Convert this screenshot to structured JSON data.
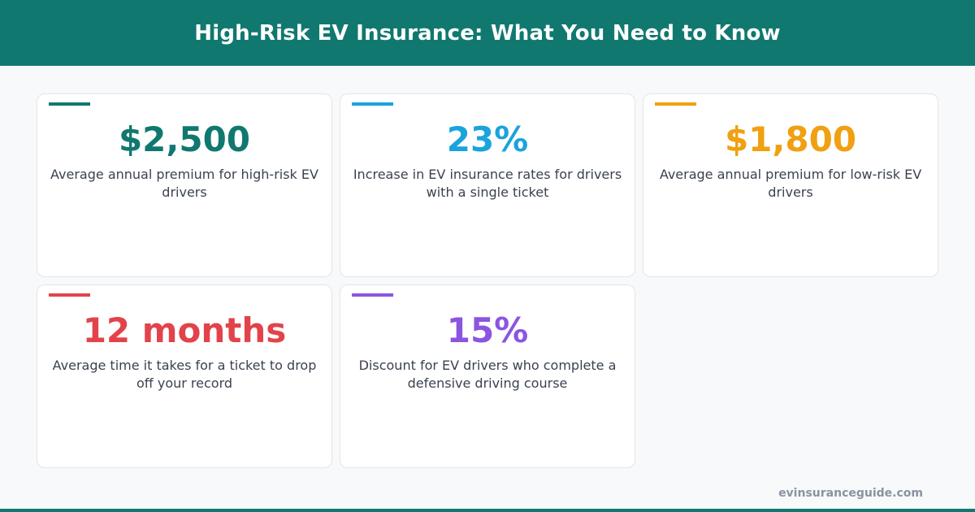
{
  "title": "High-Risk EV Insurance: What You Need to Know",
  "colors": {
    "brand": "#117870",
    "teal": "#117870",
    "blue": "#1ba3dc",
    "orange": "#f0a010",
    "red": "#e2434a",
    "purple": "#8b55e0"
  },
  "cards": [
    {
      "value": "$2,500",
      "description": "Average annual premium for high-risk EV drivers",
      "color": "#117870"
    },
    {
      "value": "23%",
      "description": "Increase in EV insurance rates for drivers with a single ticket",
      "color": "#1ba3dc"
    },
    {
      "value": "$1,800",
      "description": "Average annual premium for low-risk EV drivers",
      "color": "#f0a010"
    },
    {
      "value": "12 months",
      "description": "Average time it takes for a ticket to drop off your record",
      "color": "#e2434a"
    },
    {
      "value": "15%",
      "description": "Discount for EV drivers who complete a defensive driving course",
      "color": "#8b55e0"
    }
  ],
  "footer": {
    "url": "evinsuranceguide.com"
  }
}
